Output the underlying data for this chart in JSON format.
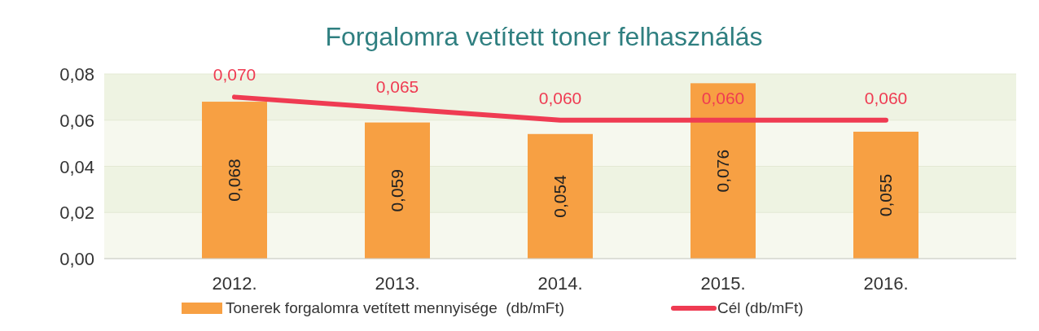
{
  "chart_data": {
    "type": "bar",
    "title": "Forgalomra vetített toner felhasználás",
    "categories": [
      "2012.",
      "2013.",
      "2014.",
      "2015.",
      "2016."
    ],
    "series": [
      {
        "name": "Tonerek forgalomra vetített mennyisége  (db/mFt)",
        "color": "#f7a043",
        "values": [
          0.068,
          0.059,
          0.054,
          0.076,
          0.055
        ],
        "value_labels": [
          "0,068",
          "0,059",
          "0,054",
          "0,076",
          "0,055"
        ]
      },
      {
        "name": "Cél (db/mFt)",
        "type": "line",
        "color": "#ef3b52",
        "values": [
          0.07,
          0.065,
          0.06,
          0.06,
          0.06
        ],
        "value_labels": [
          "0,070",
          "0,065",
          "0,060",
          "0,060",
          "0,060"
        ]
      }
    ],
    "ylim": [
      0,
      0.08
    ],
    "yticks": [
      {
        "value": 0,
        "label": "0,00"
      },
      {
        "value": 0.02,
        "label": "0,02"
      },
      {
        "value": 0.04,
        "label": "0,04"
      },
      {
        "value": 0.06,
        "label": "0,06"
      },
      {
        "value": 0.08,
        "label": "0,08"
      }
    ],
    "grid": "y",
    "legend": "bottom",
    "marker": "none"
  }
}
